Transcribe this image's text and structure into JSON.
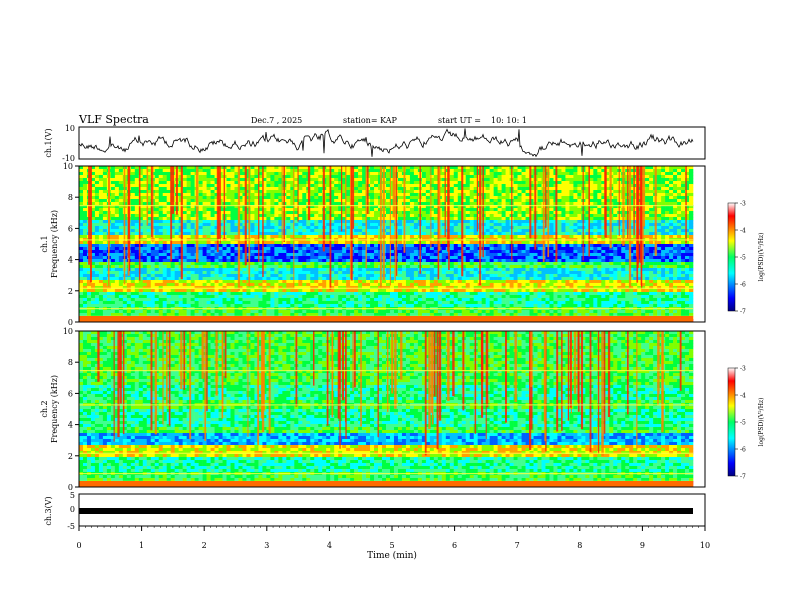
{
  "header": {
    "title": "VLF Spectra",
    "date": "Dec.7 , 2025",
    "station": "station= KAP",
    "start": "start UT =",
    "start_time": "10: 10: 1"
  },
  "chart_data": [
    {
      "type": "line",
      "name": "ch1-waveform",
      "ylabel": "ch.1(V)",
      "ylim": [
        -10,
        10
      ],
      "yticks": [
        10,
        -10
      ],
      "description_series": "amplitude trace",
      "series": [
        {
          "name": "ch.1",
          "color": "#000000"
        }
      ]
    },
    {
      "type": "heatmap",
      "name": "ch1-spectrogram",
      "ylabel": "ch.1\nFrequency (kHz)",
      "ylim": [
        0,
        10
      ],
      "yticks": [
        0,
        2,
        4,
        6,
        8,
        10
      ],
      "xlim": [
        0,
        10
      ],
      "bands": [
        {
          "range": [
            0,
            0.3
          ],
          "level": "orange-red"
        },
        {
          "range": [
            0.3,
            2.0
          ],
          "level": "green"
        },
        {
          "range": [
            2.0,
            2.6
          ],
          "level": "yellow"
        },
        {
          "range": [
            2.6,
            3.4
          ],
          "level": "cyan"
        },
        {
          "range": [
            3.4,
            3.7
          ],
          "level": "green"
        },
        {
          "range": [
            3.7,
            5.0
          ],
          "level": "blue"
        },
        {
          "range": [
            5.0,
            5.5
          ],
          "level": "yellow"
        },
        {
          "range": [
            5.5,
            6.5
          ],
          "level": "cyan"
        },
        {
          "range": [
            6.5,
            10
          ],
          "level": "green-yellow"
        }
      ],
      "colorbar": {
        "label": "log(PSD)(V^2/Hz)",
        "range": [
          -7,
          -3
        ],
        "ticks": [
          "-3",
          "-4",
          "-5",
          "-6",
          "-7"
        ]
      }
    },
    {
      "type": "heatmap",
      "name": "ch2-spectrogram",
      "ylabel": "ch.2\nFrequency (kHz)",
      "ylim": [
        0,
        10
      ],
      "yticks": [
        0,
        2,
        4,
        6,
        8,
        10
      ],
      "xlim": [
        0,
        10
      ],
      "colorbar": {
        "label": "log(PSD)(V^2/Hz)",
        "range": [
          -7,
          -3
        ],
        "ticks": [
          "-3",
          "-4",
          "-5",
          "-6",
          "-7"
        ]
      }
    },
    {
      "type": "line",
      "name": "ch3-waveform",
      "ylabel": "ch.3(V)",
      "ylim": [
        -5,
        5
      ],
      "yticks": [
        5,
        0,
        -5
      ],
      "xlabel": "Time (min)",
      "xlim": [
        0,
        10
      ],
      "xticks": [
        0,
        1,
        2,
        3,
        4,
        5,
        6,
        7,
        8,
        9,
        10
      ],
      "series": [
        {
          "name": "ch.3",
          "color": "#000000",
          "level": -0.3
        }
      ]
    }
  ],
  "labels": {
    "ch1_axis": "ch.1(V)",
    "ch1_spec_axis_line1": "ch.1",
    "ch1_spec_axis_line2": "Frequency (kHz)",
    "ch2_spec_axis_line1": "ch.2",
    "ch2_spec_axis_line2": "Frequency (kHz)",
    "ch3_axis": "ch.3(V)",
    "time_axis": "Time (min)",
    "colorbar_label": "log(PSD)(V²/Hz)"
  }
}
